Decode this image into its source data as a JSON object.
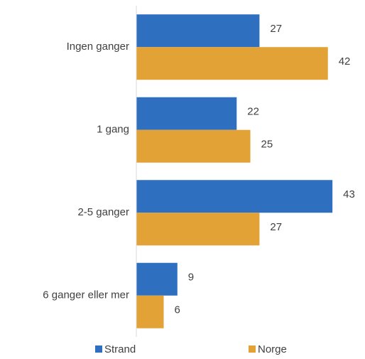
{
  "chart_data": {
    "type": "bar",
    "orientation": "horizontal",
    "categories": [
      "Ingen ganger",
      "1 gang",
      "2-5 ganger",
      "6 ganger eller mer"
    ],
    "series": [
      {
        "name": "Strand",
        "color": "#2f6fbf",
        "values": [
          27,
          22,
          43,
          9
        ]
      },
      {
        "name": "Norge",
        "color": "#e2a236",
        "values": [
          42,
          25,
          27,
          6
        ]
      }
    ],
    "xlim": [
      0,
      45
    ],
    "legend": "bottom"
  }
}
